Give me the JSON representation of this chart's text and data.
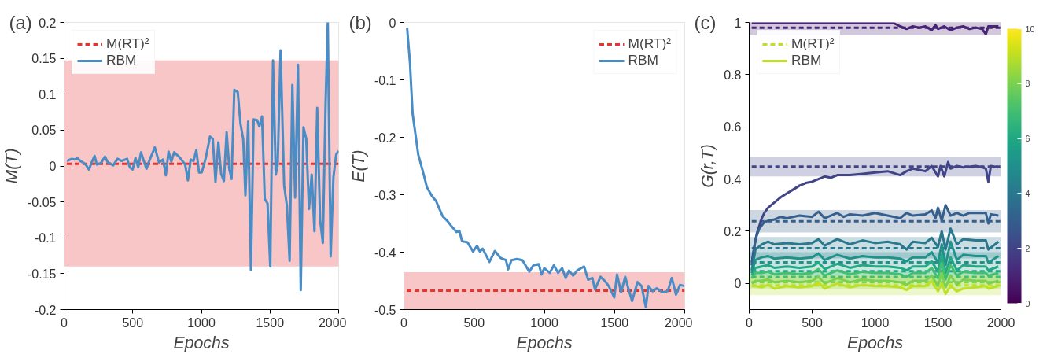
{
  "chart_data": [
    {
      "type": "line",
      "title": "(a)",
      "xlabel": "Epochs",
      "ylabel": "M(T)",
      "xlim": [
        0,
        2000
      ],
      "ylim": [
        -0.2,
        0.2
      ],
      "xticks": [
        0,
        500,
        1000,
        1500,
        2000
      ],
      "yticks": [
        -0.2,
        -0.15,
        -0.1,
        -0.05,
        0,
        0.05,
        0.1,
        0.15,
        0.2
      ],
      "legend": "top left",
      "bands": [
        {
          "axis": "y",
          "from": -0.14,
          "to": 0.147,
          "color": "#f08080"
        }
      ],
      "series": [
        {
          "name": "M(RT)²",
          "color": "#e8332e",
          "line_style": "dashed",
          "x": [
            20,
            2000
          ],
          "values": [
            0.003,
            0.003
          ]
        },
        {
          "name": "RBM",
          "color": "#4a8cc5",
          "line_style": "solid",
          "x": [
            20,
            56,
            77,
            97,
            117,
            137,
            157,
            181,
            201,
            222,
            238,
            268,
            298,
            318,
            358,
            389,
            419,
            459,
            479,
            499,
            520,
            540,
            560,
            600,
            620,
            661,
            691,
            721,
            741,
            761,
            781,
            802,
            842,
            882,
            902,
            922,
            943,
            963,
            983,
            1003,
            1033,
            1063,
            1083,
            1103,
            1124,
            1144,
            1164,
            1184,
            1204,
            1220,
            1240,
            1265,
            1285,
            1305,
            1321,
            1341,
            1361,
            1381,
            1406,
            1422,
            1442,
            1462,
            1482,
            1502,
            1522,
            1542,
            1556,
            1577,
            1603,
            1623,
            1643,
            1663,
            1683,
            1704,
            1724,
            1744,
            1764,
            1784,
            1804,
            1824,
            1844,
            1865,
            1885,
            1905,
            1921,
            1942,
            1962,
            1982,
            2000
          ],
          "values": [
            0.007,
            0.01,
            0.009,
            0.011,
            0.007,
            0.005,
            0.002,
            -0.005,
            0.005,
            0.014,
            0.002,
            0.004,
            0.013,
            0.005,
            0.001,
            0.01,
            0.007,
            0.01,
            -0.002,
            -0.005,
            0.011,
            -0.002,
            0.019,
            -0.004,
            0.007,
            0.026,
            0.005,
            0.009,
            -0.013,
            0.02,
            0.006,
            0.019,
            0.012,
            0.002,
            -0.02,
            0.009,
            0.007,
            0.022,
            -0.009,
            -0.009,
            0.012,
            0.041,
            0.038,
            -0.022,
            0.033,
            -0.011,
            -0.021,
            0.047,
            -0.005,
            -0.018,
            0.106,
            0.103,
            0.059,
            0.037,
            -0.041,
            0.062,
            -0.145,
            0.065,
            0.064,
            0.055,
            0.069,
            -0.046,
            -0.052,
            -0.14,
            0.147,
            -0.012,
            0.002,
            0.161,
            -0.027,
            -0.055,
            -0.132,
            0.113,
            -0.044,
            0.141,
            -0.173,
            0.054,
            0.038,
            -0.06,
            -0.012,
            -0.091,
            0.081,
            -0.075,
            -0.107,
            0.087,
            0.2,
            -0.126,
            -0.016,
            0.016,
            0.021
          ]
        }
      ]
    },
    {
      "type": "line",
      "title": "(b)",
      "xlabel": "Epochs",
      "ylabel": "E(T)",
      "xlim": [
        0,
        2000
      ],
      "ylim": [
        -0.5,
        0
      ],
      "xticks": [
        0,
        500,
        1000,
        1500,
        2000
      ],
      "yticks": [
        -0.5,
        -0.4,
        -0.3,
        -0.2,
        -0.1,
        0
      ],
      "legend": "top right",
      "bands": [
        {
          "axis": "y",
          "from": -0.5,
          "to": -0.435,
          "color": "#f08080"
        }
      ],
      "series": [
        {
          "name": "M(RT)²",
          "color": "#e8332e",
          "line_style": "dashed",
          "x": [
            20,
            2000
          ],
          "values": [
            -0.467,
            -0.467
          ]
        },
        {
          "name": "RBM",
          "color": "#4a8cc5",
          "line_style": "solid",
          "x": [
            23,
            43,
            62,
            102,
            141,
            164,
            199,
            229,
            248,
            277,
            307,
            336,
            375,
            395,
            414,
            453,
            492,
            521,
            541,
            561,
            609,
            648,
            688,
            727,
            742,
            766,
            805,
            844,
            893,
            922,
            961,
            980,
            1000,
            1039,
            1068,
            1098,
            1127,
            1152,
            1176,
            1205,
            1234,
            1283,
            1312,
            1342,
            1361,
            1400,
            1430,
            1459,
            1498,
            1518,
            1547,
            1576,
            1596,
            1625,
            1664,
            1693,
            1723,
            1742,
            1771,
            1801,
            1840,
            1879,
            1908,
            1938,
            1967,
            1996
          ],
          "values": [
            -0.01,
            -0.07,
            -0.159,
            -0.23,
            -0.265,
            -0.287,
            -0.302,
            -0.311,
            -0.322,
            -0.338,
            -0.345,
            -0.354,
            -0.365,
            -0.363,
            -0.381,
            -0.383,
            -0.399,
            -0.389,
            -0.399,
            -0.394,
            -0.417,
            -0.398,
            -0.41,
            -0.414,
            -0.43,
            -0.414,
            -0.412,
            -0.414,
            -0.434,
            -0.423,
            -0.421,
            -0.439,
            -0.428,
            -0.436,
            -0.423,
            -0.436,
            -0.428,
            -0.445,
            -0.432,
            -0.441,
            -0.432,
            -0.425,
            -0.448,
            -0.445,
            -0.465,
            -0.443,
            -0.45,
            -0.459,
            -0.479,
            -0.439,
            -0.47,
            -0.443,
            -0.461,
            -0.485,
            -0.452,
            -0.459,
            -0.496,
            -0.459,
            -0.468,
            -0.463,
            -0.47,
            -0.468,
            -0.445,
            -0.474,
            -0.457,
            -0.459
          ]
        }
      ]
    },
    {
      "type": "line",
      "title": "(c)",
      "xlabel": "Epochs",
      "ylabel": "G(r,T)",
      "xlim": [
        0,
        2000
      ],
      "ylim": [
        -0.1,
        1
      ],
      "xticks": [
        0,
        500,
        1000,
        1500,
        2000
      ],
      "yticks": [
        0,
        0.2,
        0.4,
        0.6,
        0.8,
        1
      ],
      "legend": "top left",
      "clim": [
        0,
        10
      ],
      "cticks": [
        0,
        2,
        4,
        6,
        8,
        10
      ],
      "bands": [
        {
          "axis": "y",
          "from": 0.951,
          "to": 1.0,
          "color": "#482475"
        },
        {
          "axis": "y",
          "from": 0.41,
          "to": 0.485,
          "color": "#414487"
        },
        {
          "axis": "y",
          "from": 0.195,
          "to": 0.281,
          "color": "#355f8d"
        },
        {
          "axis": "y",
          "from": 0.096,
          "to": 0.178,
          "color": "#2a788e"
        },
        {
          "axis": "y",
          "from": 0.066,
          "to": 0.12,
          "color": "#21918c"
        },
        {
          "axis": "y",
          "from": 0.03,
          "to": 0.065,
          "color": "#22a884"
        },
        {
          "axis": "y",
          "from": 0.005,
          "to": 0.045,
          "color": "#44bf70"
        },
        {
          "axis": "y",
          "from": -0.02,
          "to": 0.03,
          "color": "#7ad151"
        },
        {
          "axis": "y",
          "from": -0.045,
          "to": 0.03,
          "color": "#bddf26"
        }
      ],
      "series": [
        {
          "color": "#482475",
          "line_style": "dashed",
          "x": [
            20,
            2000
          ],
          "values": [
            0.98,
            0.98
          ]
        },
        {
          "color": "#414487",
          "line_style": "dashed",
          "x": [
            20,
            2000
          ],
          "values": [
            0.448,
            0.448
          ]
        },
        {
          "color": "#355f8d",
          "line_style": "dashed",
          "x": [
            20,
            2000
          ],
          "values": [
            0.238,
            0.238
          ]
        },
        {
          "color": "#2a788e",
          "line_style": "dashed",
          "x": [
            20,
            2000
          ],
          "values": [
            0.135,
            0.135
          ]
        },
        {
          "color": "#21918c",
          "line_style": "dashed",
          "x": [
            20,
            2000
          ],
          "values": [
            0.081,
            0.081
          ]
        },
        {
          "color": "#22a884",
          "line_style": "dashed",
          "x": [
            20,
            2000
          ],
          "values": [
            0.047,
            0.047
          ]
        },
        {
          "color": "#44bf70",
          "line_style": "dashed",
          "x": [
            20,
            2000
          ],
          "values": [
            0.025,
            0.025
          ]
        },
        {
          "color": "#7ad151",
          "line_style": "dashed",
          "x": [
            20,
            2000
          ],
          "values": [
            0.005,
            0.005
          ]
        },
        {
          "name": "M(RT)²",
          "color": "#bddf26",
          "line_style": "dashed",
          "x": [
            20,
            2000
          ],
          "values": [
            -0.007,
            -0.007
          ]
        },
        {
          "color": "#482475",
          "line_style": "solid",
          "x": [
            20,
            200,
            400,
            600,
            800,
            1000,
            1150,
            1200,
            1250,
            1300,
            1350,
            1400,
            1450,
            1480,
            1500,
            1550,
            1600,
            1650,
            1700,
            1750,
            1800,
            1850,
            1880,
            1900,
            1950,
            1980
          ],
          "values": [
            0.997,
            0.997,
            0.997,
            0.997,
            0.997,
            0.997,
            0.997,
            0.985,
            0.975,
            0.985,
            0.98,
            0.985,
            0.97,
            0.99,
            0.975,
            0.985,
            0.97,
            0.98,
            0.985,
            0.975,
            0.98,
            0.975,
            0.955,
            0.985,
            0.985,
            0.985
          ]
        },
        {
          "color": "#414487",
          "line_style": "solid",
          "x": [
            20,
            40,
            60,
            80,
            100,
            120,
            150,
            200,
            250,
            300,
            350,
            400,
            450,
            500,
            550,
            600,
            650,
            700,
            800,
            900,
            1000,
            1100,
            1200,
            1250,
            1300,
            1400,
            1450,
            1500,
            1520,
            1550,
            1580,
            1600,
            1650,
            1700,
            1800,
            1850,
            1880,
            1900,
            1920,
            1980
          ],
          "values": [
            0.08,
            0.14,
            0.19,
            0.22,
            0.25,
            0.27,
            0.29,
            0.31,
            0.33,
            0.345,
            0.36,
            0.375,
            0.385,
            0.39,
            0.4,
            0.41,
            0.405,
            0.415,
            0.415,
            0.42,
            0.425,
            0.43,
            0.415,
            0.43,
            0.44,
            0.43,
            0.45,
            0.41,
            0.45,
            0.41,
            0.465,
            0.44,
            0.45,
            0.445,
            0.45,
            0.445,
            0.44,
            0.39,
            0.45,
            0.445
          ]
        },
        {
          "color": "#355f8d",
          "line_style": "solid",
          "x": [
            20,
            50,
            80,
            120,
            150,
            200,
            250,
            300,
            400,
            500,
            550,
            600,
            700,
            750,
            800,
            900,
            1000,
            1100,
            1200,
            1250,
            1300,
            1400,
            1450,
            1480,
            1500,
            1530,
            1560,
            1600,
            1650,
            1700,
            1750,
            1800,
            1880,
            1900,
            1920,
            1980
          ],
          "values": [
            0.07,
            0.17,
            0.21,
            0.235,
            0.24,
            0.245,
            0.255,
            0.25,
            0.26,
            0.255,
            0.275,
            0.25,
            0.27,
            0.255,
            0.265,
            0.26,
            0.27,
            0.26,
            0.25,
            0.27,
            0.26,
            0.265,
            0.28,
            0.25,
            0.29,
            0.24,
            0.3,
            0.26,
            0.27,
            0.26,
            0.27,
            0.27,
            0.27,
            0.23,
            0.265,
            0.26
          ]
        },
        {
          "color": "#2a788e",
          "line_style": "solid",
          "x": [
            20,
            50,
            100,
            150,
            200,
            300,
            400,
            500,
            550,
            600,
            700,
            800,
            900,
            1000,
            1100,
            1200,
            1250,
            1300,
            1400,
            1450,
            1500,
            1530,
            1560,
            1600,
            1650,
            1700,
            1800,
            1880,
            1900,
            1980
          ],
          "values": [
            0.05,
            0.13,
            0.15,
            0.16,
            0.15,
            0.155,
            0.15,
            0.155,
            0.17,
            0.145,
            0.17,
            0.15,
            0.165,
            0.155,
            0.16,
            0.15,
            0.13,
            0.16,
            0.155,
            0.175,
            0.14,
            0.2,
            0.13,
            0.21,
            0.15,
            0.17,
            0.165,
            0.165,
            0.13,
            0.16
          ]
        },
        {
          "color": "#21918c",
          "line_style": "solid",
          "x": [
            20,
            50,
            100,
            150,
            200,
            300,
            400,
            500,
            550,
            600,
            700,
            800,
            900,
            1000,
            1100,
            1200,
            1250,
            1300,
            1400,
            1450,
            1500,
            1530,
            1560,
            1600,
            1650,
            1700,
            1800,
            1880,
            1900,
            1980
          ],
          "values": [
            0.04,
            0.09,
            0.1,
            0.105,
            0.095,
            0.1,
            0.095,
            0.1,
            0.115,
            0.09,
            0.11,
            0.095,
            0.105,
            0.1,
            0.1,
            0.095,
            0.085,
            0.1,
            0.1,
            0.12,
            0.08,
            0.15,
            0.07,
            0.16,
            0.09,
            0.11,
            0.105,
            0.105,
            0.08,
            0.105
          ]
        },
        {
          "color": "#22a884",
          "line_style": "solid",
          "x": [
            20,
            50,
            100,
            150,
            200,
            300,
            400,
            500,
            550,
            600,
            700,
            800,
            900,
            1000,
            1100,
            1200,
            1250,
            1300,
            1400,
            1450,
            1500,
            1530,
            1560,
            1600,
            1650,
            1700,
            1800,
            1880,
            1900,
            1980
          ],
          "values": [
            0.03,
            0.06,
            0.065,
            0.07,
            0.06,
            0.065,
            0.06,
            0.065,
            0.08,
            0.055,
            0.075,
            0.06,
            0.07,
            0.065,
            0.065,
            0.06,
            0.05,
            0.065,
            0.065,
            0.085,
            0.045,
            0.11,
            0.04,
            0.1,
            0.05,
            0.07,
            0.065,
            0.065,
            0.05,
            0.065
          ]
        },
        {
          "color": "#44bf70",
          "line_style": "solid",
          "x": [
            20,
            50,
            100,
            150,
            200,
            300,
            400,
            500,
            550,
            600,
            700,
            800,
            900,
            1000,
            1100,
            1200,
            1250,
            1300,
            1400,
            1450,
            1500,
            1530,
            1560,
            1600,
            1650,
            1700,
            1800,
            1880,
            1900,
            1980
          ],
          "values": [
            0.02,
            0.04,
            0.04,
            0.045,
            0.035,
            0.04,
            0.035,
            0.04,
            0.055,
            0.03,
            0.05,
            0.035,
            0.045,
            0.04,
            0.04,
            0.035,
            0.025,
            0.04,
            0.04,
            0.06,
            0.02,
            0.08,
            0.015,
            0.07,
            0.03,
            0.045,
            0.04,
            0.04,
            0.03,
            0.04
          ]
        },
        {
          "color": "#7ad151",
          "line_style": "solid",
          "x": [
            20,
            50,
            100,
            150,
            200,
            300,
            400,
            500,
            550,
            600,
            700,
            800,
            900,
            1000,
            1100,
            1200,
            1250,
            1300,
            1400,
            1450,
            1500,
            1530,
            1560,
            1600,
            1650,
            1700,
            1800,
            1880,
            1900,
            1980
          ],
          "values": [
            0.0,
            0.01,
            0.01,
            0.015,
            0.005,
            0.01,
            0.005,
            0.01,
            0.025,
            0.0,
            0.02,
            0.005,
            0.015,
            0.01,
            0.01,
            0.005,
            -0.005,
            0.01,
            0.01,
            0.03,
            -0.01,
            0.04,
            -0.015,
            0.03,
            -0.005,
            0.015,
            0.01,
            0.01,
            0.0,
            0.01
          ]
        },
        {
          "name": "RBM",
          "color": "#bddf26",
          "line_style": "solid",
          "x": [
            20,
            50,
            100,
            150,
            200,
            300,
            400,
            500,
            550,
            600,
            700,
            800,
            900,
            1000,
            1100,
            1200,
            1250,
            1300,
            1400,
            1450,
            1500,
            1530,
            1560,
            1600,
            1650,
            1700,
            1800,
            1880,
            1900,
            1980
          ],
          "values": [
            -0.01,
            -0.01,
            -0.015,
            -0.005,
            -0.02,
            -0.01,
            -0.015,
            -0.01,
            0.005,
            -0.02,
            0.0,
            -0.015,
            -0.005,
            -0.01,
            -0.01,
            -0.015,
            -0.025,
            -0.01,
            -0.01,
            0.01,
            -0.03,
            0.0,
            -0.04,
            -0.01,
            -0.03,
            -0.02,
            -0.015,
            -0.01,
            -0.02,
            -0.01
          ]
        }
      ]
    }
  ]
}
